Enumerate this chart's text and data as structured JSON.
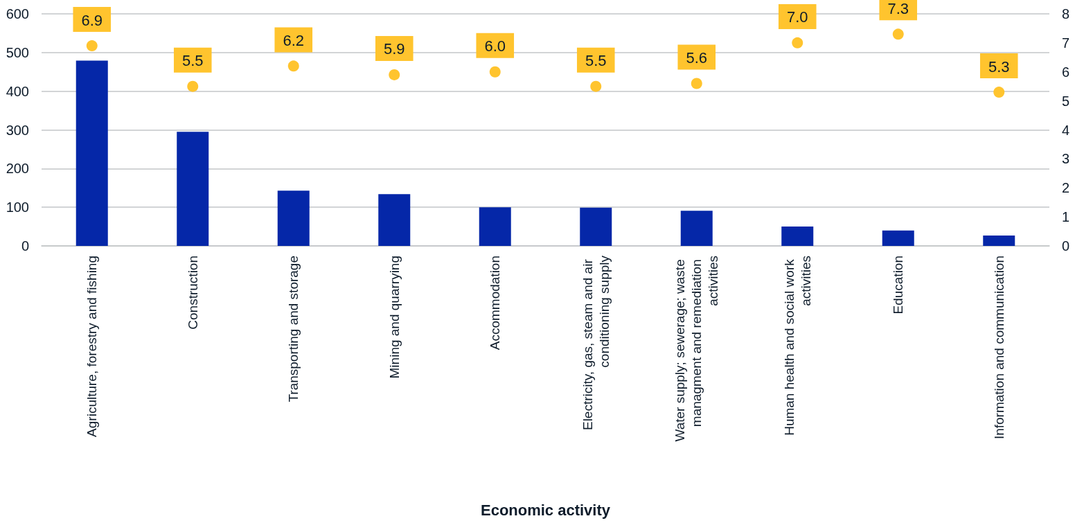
{
  "chart_data": {
    "type": "bar",
    "xlabel": "Economic activity",
    "categories": [
      "Agriculture, forestry and fishing",
      "Construction",
      "Transporting and storage",
      "Mining and quarrying",
      "Accommodation",
      "Electricity, gas, steam and air conditioning supply",
      "Water supply; sewerage; waste managment and remediation activities",
      "Human health and social work activities",
      "Education",
      "Information and communication"
    ],
    "series": [
      {
        "color": "#0527a8",
        "values": [
          479,
          295,
          143,
          134,
          100,
          99,
          91,
          50,
          40,
          27
        ]
      },
      {
        "type": "scatter",
        "axis": "y2",
        "color": "#ffc42e",
        "marker": "circle",
        "values": [
          6.9,
          5.5,
          6.2,
          5.9,
          6.0,
          5.5,
          5.6,
          7.0,
          7.3,
          5.3
        ],
        "value_labels": [
          "6.9",
          "5.5",
          "6.2",
          "5.9",
          "6.0",
          "5.5",
          "5.6",
          "7.0",
          "7.3",
          "5.3"
        ]
      }
    ],
    "ylim": [
      0,
      600
    ],
    "yticks": [
      0,
      100,
      200,
      300,
      400,
      500,
      600
    ],
    "y2lim": [
      0,
      8
    ],
    "y2ticks": [
      0,
      1,
      2,
      3,
      4,
      5,
      6,
      7,
      8
    ],
    "grid": "y"
  }
}
